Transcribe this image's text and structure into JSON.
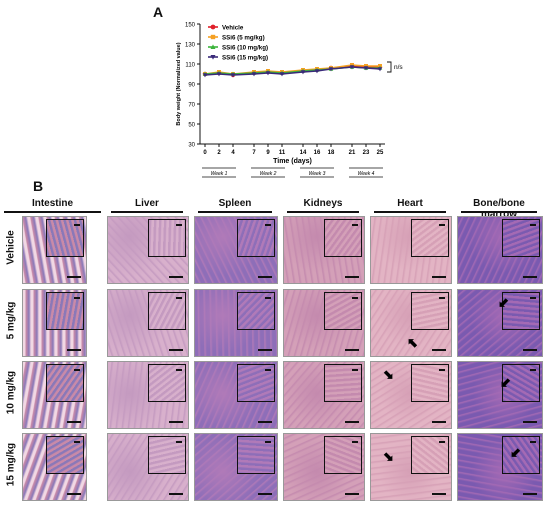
{
  "panel_a": {
    "letter": "A",
    "chart_data": {
      "type": "line",
      "ylabel": "Body weight (Normalized value)",
      "xlabel": "Time (days)",
      "ylim": [
        30,
        150
      ],
      "yticks": [
        30,
        50,
        70,
        90,
        110,
        130,
        150
      ],
      "x": [
        0,
        2,
        4,
        7,
        9,
        11,
        14,
        16,
        18,
        21,
        23,
        25
      ],
      "x_ticks": [
        "0",
        "2",
        "4",
        "7",
        "9",
        "11",
        "14",
        "16",
        "18",
        "21",
        "23",
        "25"
      ],
      "series": [
        {
          "name": "Vehicle",
          "color": "#e0202a",
          "marker": "circle",
          "values": [
            100,
            101,
            99,
            101,
            102,
            101,
            103,
            104,
            106,
            108,
            107,
            107
          ]
        },
        {
          "name": "SSi6 (5 mg/kg)",
          "color": "#f5a023",
          "marker": "square",
          "values": [
            100,
            102,
            100,
            102,
            103,
            102,
            104,
            105,
            106,
            109,
            108,
            108
          ]
        },
        {
          "name": "SSi6 (10 mg/kg)",
          "color": "#3cb43c",
          "marker": "triangle",
          "values": [
            100,
            101,
            100,
            101,
            102,
            101,
            103,
            104,
            105,
            107,
            106,
            106
          ]
        },
        {
          "name": "SSi6 (15 mg/kg)",
          "color": "#3a2a7a",
          "marker": "triangle-down",
          "values": [
            99,
            100,
            99,
            100,
            101,
            100,
            102,
            103,
            105,
            107,
            106,
            105
          ]
        }
      ],
      "weeks": [
        "Week 1",
        "Week 2",
        "Week 3",
        "Week 4"
      ],
      "annotation": "n/s",
      "legend_position": "top-left"
    }
  },
  "panel_b": {
    "letter": "B",
    "columns": [
      "Intestine",
      "Liver",
      "Spleen",
      "Kidneys",
      "Heart",
      "Bone/bone marrow"
    ],
    "rows": [
      "Vehicle",
      "5 mg/kg",
      "10 mg/kg",
      "15 mg/kg"
    ],
    "tile_colors": {
      "Intestine": [
        "#c98aa8",
        "#8a78b8"
      ],
      "Liver": [
        "#d8b0cc",
        "#c49ac0"
      ],
      "Spleen": [
        "#8e6eb8",
        "#b07ab8"
      ],
      "Kidneys": [
        "#d4a0b8",
        "#c48aae"
      ],
      "Heart": [
        "#e3b4c4",
        "#d6a0b6"
      ],
      "Bone/bone marrow": [
        "#7a5ab0",
        "#a46ab4"
      ]
    }
  }
}
